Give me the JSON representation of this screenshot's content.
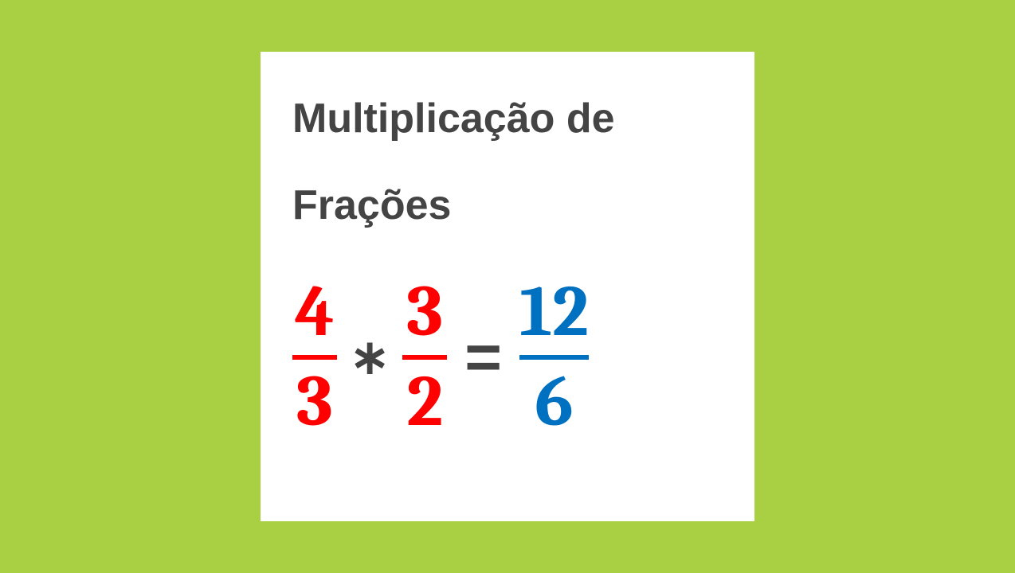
{
  "background_color": "#a9d043",
  "card_background": "#ffffff",
  "title": {
    "line1": "Multiplicação de",
    "line2": "Frações",
    "color": "#444444",
    "font_size": 52
  },
  "equation": {
    "fraction1": {
      "numerator": "4",
      "denominator": "3",
      "color": "#ff0000"
    },
    "operator1": "∗",
    "fraction2": {
      "numerator": "3",
      "denominator": "2",
      "color": "#ff0000"
    },
    "equals": "=",
    "result": {
      "numerator": "12",
      "denominator": "6",
      "color": "#0070c0"
    },
    "operator_color": "#444444",
    "fraction_font_size": 90
  }
}
